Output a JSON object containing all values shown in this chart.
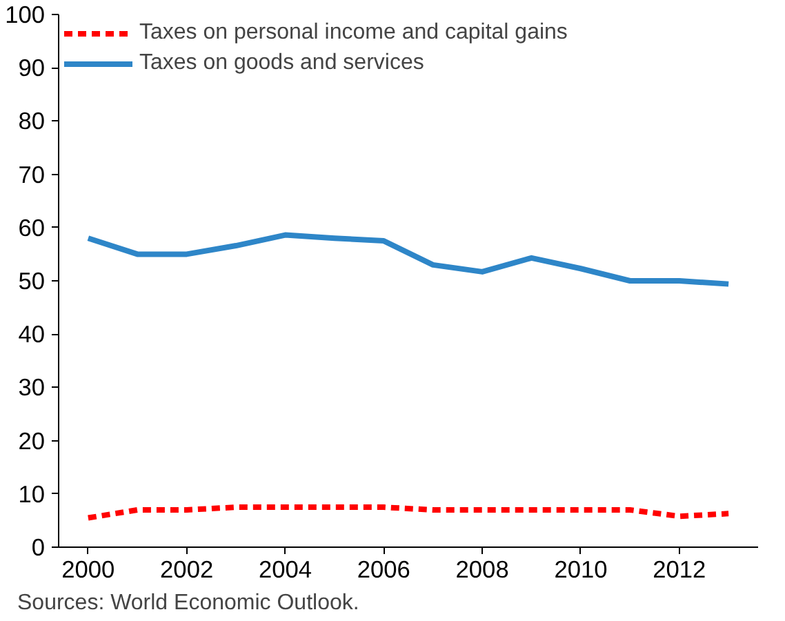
{
  "chart_data": {
    "type": "line",
    "x": [
      2000,
      2001,
      2002,
      2003,
      2004,
      2005,
      2006,
      2007,
      2008,
      2009,
      2010,
      2011,
      2012,
      2013
    ],
    "series": [
      {
        "name": "Taxes on personal income and capital gains",
        "color": "#ff0000",
        "line_style": "dashed",
        "values": [
          5.5,
          7,
          7,
          7.5,
          7.5,
          7.5,
          7.5,
          7,
          7,
          7,
          7,
          7,
          5.8,
          6.3
        ]
      },
      {
        "name": "Taxes on goods and services",
        "color": "#2e86c8",
        "line_style": "solid",
        "values": [
          58,
          55,
          55,
          56.6,
          58.6,
          58,
          57.5,
          53,
          51.7,
          54.3,
          52.3,
          50,
          50,
          49.4
        ]
      }
    ],
    "xlim": [
      1999.4,
      2013.6
    ],
    "xticks": [
      2000,
      2002,
      2004,
      2006,
      2008,
      2010,
      2012
    ],
    "ylim": [
      0,
      100
    ],
    "yticks": [
      0,
      10,
      20,
      30,
      40,
      50,
      60,
      70,
      80,
      90,
      100
    ],
    "grid": false,
    "legend": "top left",
    "marker": "none",
    "annotations": [
      "Sources: World Economic Outlook."
    ]
  }
}
